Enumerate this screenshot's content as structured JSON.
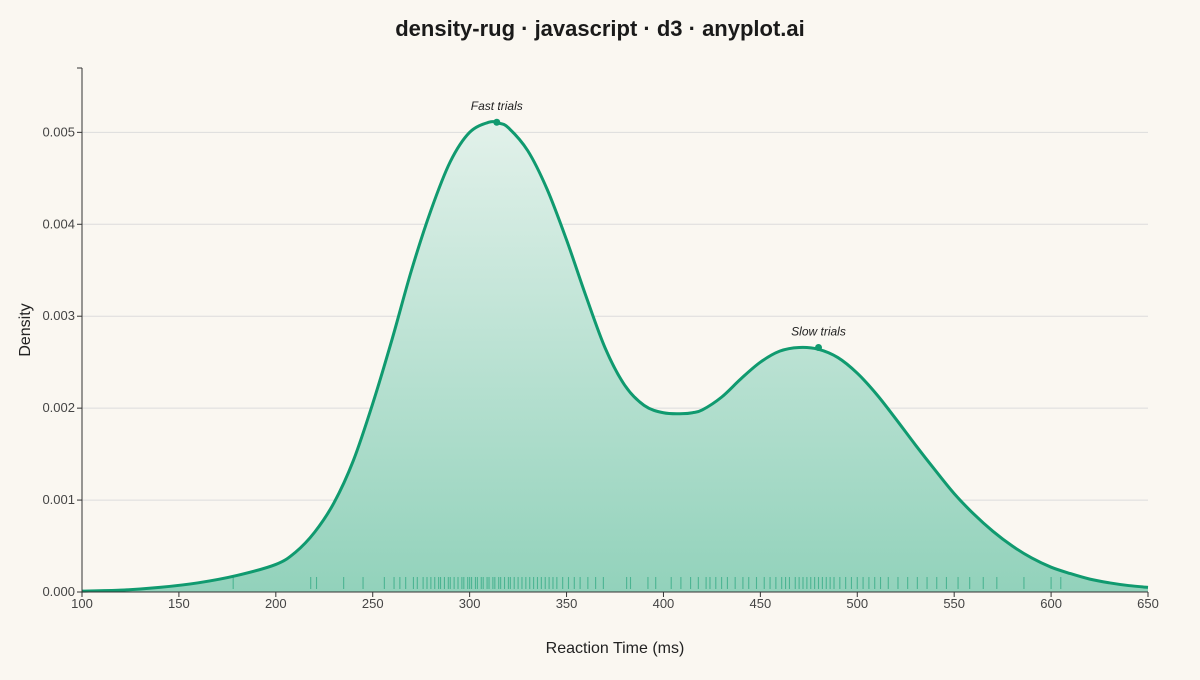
{
  "chart_data": {
    "type": "area",
    "title": "density-rug · javascript · d3 · anyplot.ai",
    "xlabel": "Reaction Time (ms)",
    "ylabel": "Density",
    "xlim": [
      100,
      650
    ],
    "ylim": [
      0,
      0.0057
    ],
    "x_ticks": [
      100,
      150,
      200,
      250,
      300,
      350,
      400,
      450,
      500,
      550,
      600,
      650
    ],
    "y_ticks": [
      0.0,
      0.001,
      0.002,
      0.003,
      0.004,
      0.005
    ],
    "y_tick_labels": [
      "0.000",
      "0.001",
      "0.002",
      "0.003",
      "0.004",
      "0.005"
    ],
    "grid": true,
    "colors": {
      "line": "#109a6f",
      "fill_top": "#e2f1ea",
      "fill_bottom": "#92d2bb",
      "background": "#faf7f1"
    },
    "series": [
      {
        "x": [
          100,
          120,
          140,
          160,
          180,
          200,
          210,
          220,
          230,
          240,
          250,
          260,
          270,
          280,
          290,
          300,
          310,
          315,
          320,
          330,
          340,
          350,
          360,
          370,
          380,
          390,
          400,
          410,
          415,
          420,
          430,
          440,
          450,
          460,
          470,
          480,
          490,
          500,
          510,
          520,
          530,
          540,
          550,
          560,
          570,
          580,
          590,
          600,
          610,
          620,
          630,
          640,
          650
        ],
        "y": [
          1e-05,
          2e-05,
          5e-05,
          0.0001,
          0.00018,
          0.0003,
          0.00043,
          0.00065,
          0.00097,
          0.00143,
          0.00205,
          0.00275,
          0.0035,
          0.00415,
          0.00468,
          0.005,
          0.00511,
          0.0051,
          0.00505,
          0.0048,
          0.00438,
          0.00383,
          0.00322,
          0.00265,
          0.00225,
          0.00203,
          0.00195,
          0.00194,
          0.00195,
          0.00198,
          0.00212,
          0.00232,
          0.0025,
          0.00262,
          0.00266,
          0.00264,
          0.00255,
          0.00238,
          0.00215,
          0.00188,
          0.0016,
          0.00133,
          0.00107,
          0.00085,
          0.00066,
          0.0005,
          0.00037,
          0.00027,
          0.0002,
          0.00014,
          0.0001,
          7e-05,
          5e-05
        ]
      }
    ],
    "rug": [
      178,
      218,
      221,
      235,
      245,
      256,
      261,
      264,
      267,
      271,
      273,
      276,
      278,
      280,
      282,
      284,
      285,
      287,
      289,
      290,
      292,
      294,
      296,
      297,
      299,
      300,
      301,
      303,
      304,
      306,
      307,
      309,
      310,
      312,
      313,
      315,
      316,
      318,
      320,
      321,
      323,
      325,
      327,
      329,
      331,
      333,
      335,
      337,
      339,
      341,
      343,
      345,
      348,
      351,
      354,
      357,
      361,
      365,
      369,
      381,
      383,
      392,
      396,
      404,
      409,
      414,
      418,
      422,
      424,
      427,
      430,
      433,
      437,
      441,
      444,
      448,
      452,
      455,
      458,
      461,
      463,
      465,
      468,
      470,
      472,
      474,
      476,
      478,
      480,
      482,
      484,
      486,
      488,
      491,
      494,
      497,
      500,
      503,
      506,
      509,
      512,
      516,
      521,
      526,
      531,
      536,
      541,
      546,
      552,
      558,
      565,
      572,
      586,
      600,
      605
    ],
    "annotations": [
      {
        "text": "Fast trials",
        "x": 314,
        "y": 0.00511
      },
      {
        "text": "Slow trials",
        "x": 480,
        "y": 0.00266
      }
    ]
  }
}
